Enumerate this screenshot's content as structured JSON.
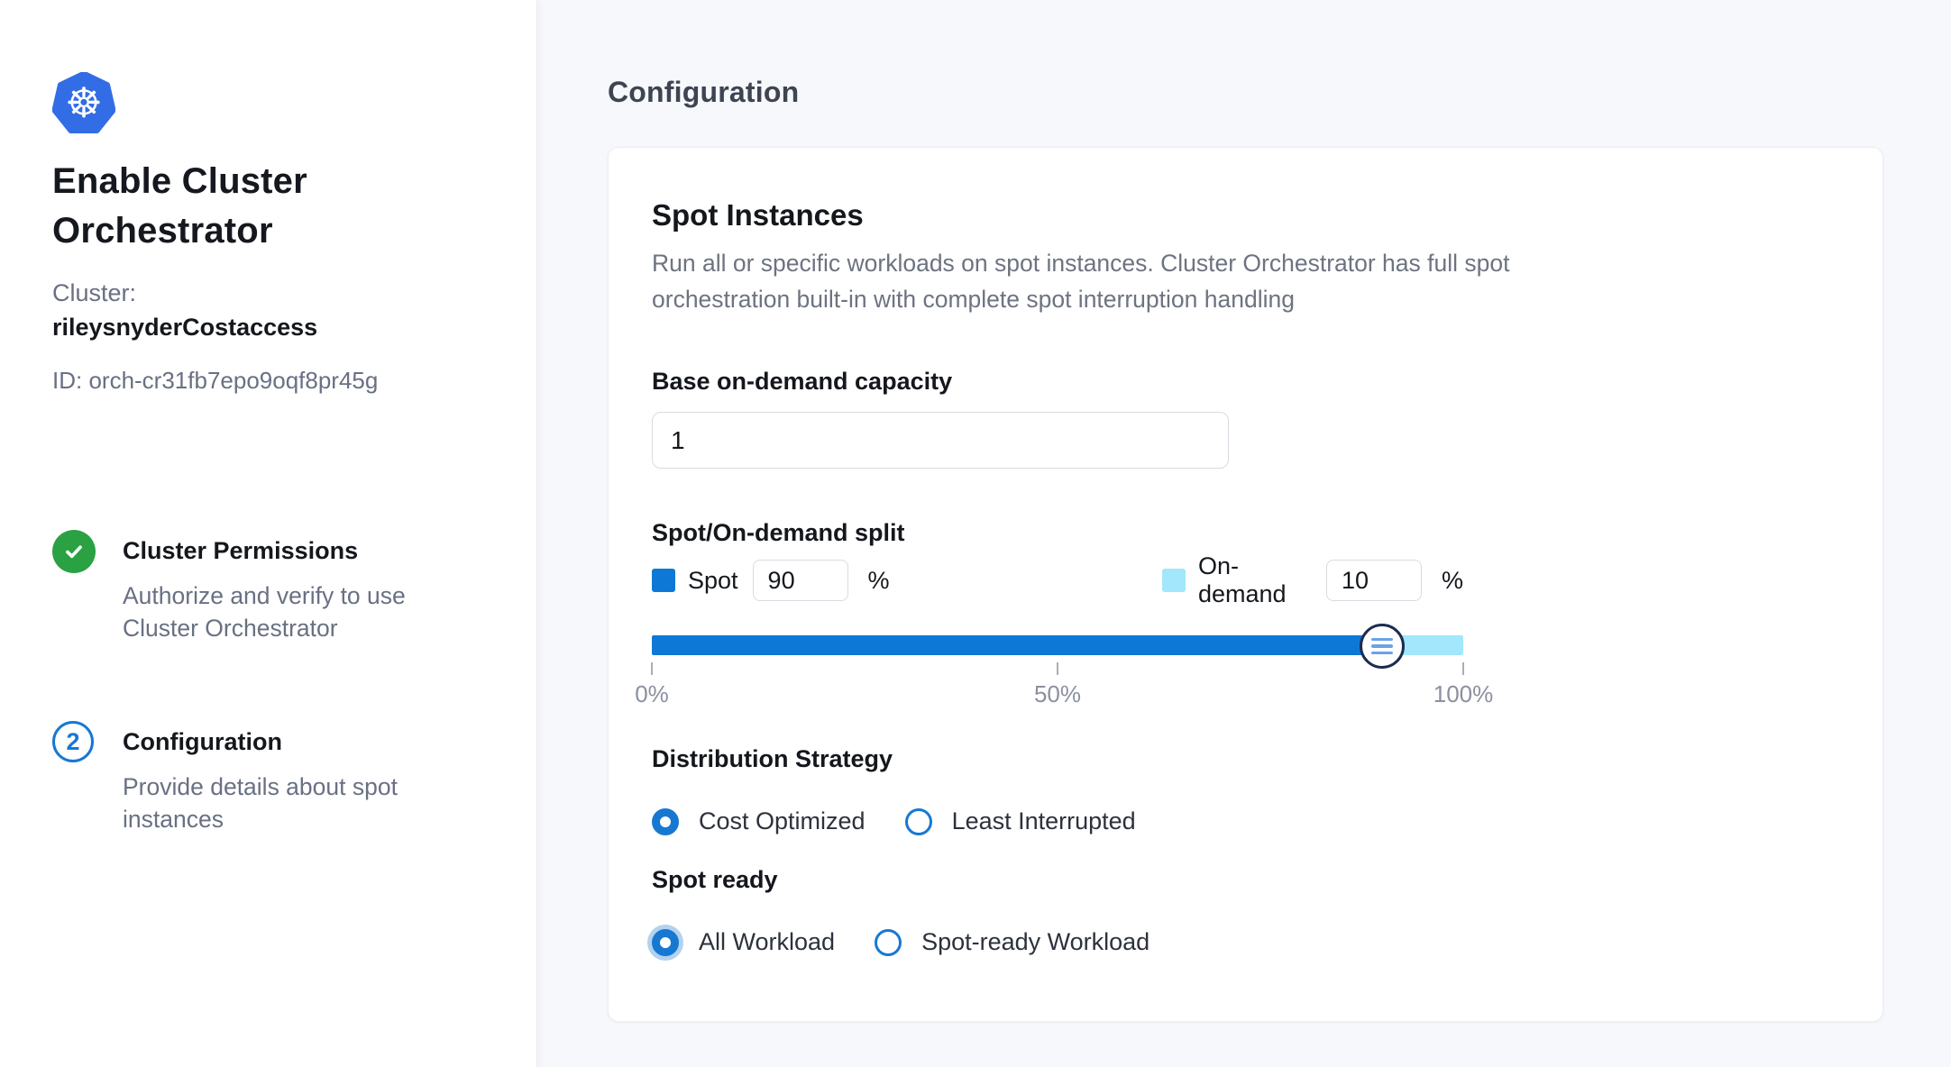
{
  "sidebar": {
    "title": "Enable Cluster\nOrchestrator",
    "cluster_label": "Cluster:",
    "cluster_name": "rileysnyderCostaccess",
    "cluster_id": "ID: orch-cr31fb7epo9oqf8pr45g",
    "steps": [
      {
        "number": "1",
        "status": "complete",
        "title": "Cluster Permissions",
        "description": "Authorize and verify to use\nCluster Orchestrator"
      },
      {
        "number": "2",
        "status": "current",
        "title": "Configuration",
        "description": "Provide details about spot\ninstances"
      }
    ]
  },
  "main": {
    "heading": "Configuration",
    "card": {
      "title": "Spot Instances",
      "description": "Run all or specific workloads on spot instances. Cluster Orchestrator has full spot\norchestration built-in with complete spot interruption handling",
      "base_capacity": {
        "label": "Base on-demand capacity",
        "value": "1"
      },
      "split": {
        "label": "Spot/On-demand split",
        "spot": {
          "label": "Spot",
          "value": "90",
          "unit": "%",
          "color": "#0d78d6"
        },
        "on_demand": {
          "label": "On-demand",
          "value": "10",
          "unit": "%",
          "color": "#a2e7fc"
        },
        "slider": {
          "spot_percent": 90,
          "ticks": [
            "0%",
            "50%",
            "100%"
          ]
        }
      },
      "distribution_strategy": {
        "label": "Distribution Strategy",
        "options": [
          {
            "label": "Cost Optimized",
            "selected": true
          },
          {
            "label": "Least Interrupted",
            "selected": false
          }
        ]
      },
      "spot_ready": {
        "label": "Spot ready",
        "options": [
          {
            "label": "All Workload",
            "selected": true
          },
          {
            "label": "Spot-ready Workload",
            "selected": false
          }
        ]
      }
    },
    "colors": {
      "accent_blue": "#1778d2",
      "success_green": "#2aa143",
      "kubernetes_blue": "#326de6",
      "handle_border": "#1d2b4f"
    }
  }
}
